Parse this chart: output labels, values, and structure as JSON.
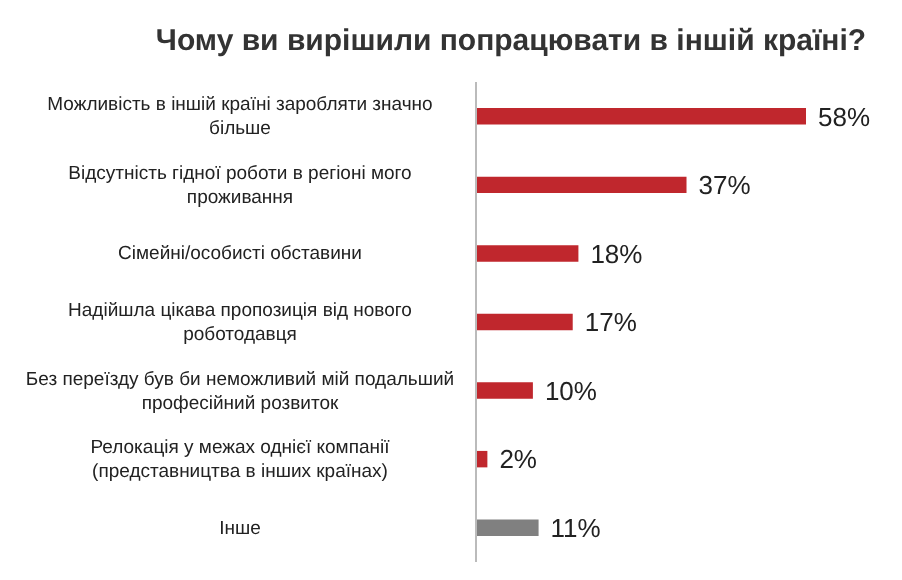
{
  "chart_data": {
    "type": "bar",
    "orientation": "horizontal",
    "title": "Чому ви вирішили попрацювати в іншій країні?",
    "categories": [
      "Можливість в іншій країні заробляти значно більше",
      "Відсутність гідної роботи в регіоні мого проживання",
      "Сімейні/особисті обставини",
      "Надійшла цікава пропозиція від нового роботодавця",
      "Без переїзду був би неможливий мій подальший професійний розвиток",
      "Релокація у межах однієї компанії (представництва в інших країнах)",
      "Інше"
    ],
    "values": [
      58,
      37,
      18,
      17,
      10,
      2,
      11
    ],
    "colors": [
      "#c0272d",
      "#c0272d",
      "#c0272d",
      "#c0272d",
      "#c0272d",
      "#c0272d",
      "#808080"
    ],
    "value_labels": [
      "58%",
      "37%",
      "18%",
      "17%",
      "10%",
      "2%",
      "11%"
    ]
  }
}
